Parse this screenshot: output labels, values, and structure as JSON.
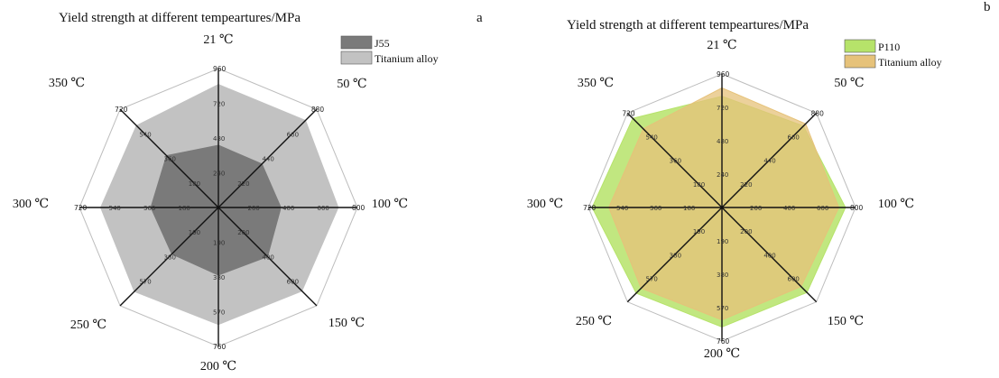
{
  "chart_data": [
    {
      "type": "radar",
      "panel": "a",
      "title": "Yield strength at different tempeartures/MPa",
      "axes": [
        {
          "label": "21 ℃",
          "max": 960,
          "ticks": [
            "240",
            "480",
            "720",
            "960"
          ]
        },
        {
          "label": "50 ℃",
          "max": 880,
          "ticks": [
            "220",
            "440",
            "660",
            "880"
          ]
        },
        {
          "label": "100 ℃",
          "max": 800,
          "ticks": [
            "200",
            "400",
            "600",
            "800"
          ]
        },
        {
          "label": "150 ℃",
          "max": 800,
          "ticks": [
            "200",
            "400",
            "600"
          ]
        },
        {
          "label": "200 ℃",
          "max": 760,
          "ticks": [
            "190",
            "380",
            "570",
            "760"
          ]
        },
        {
          "label": "250 ℃",
          "max": 760,
          "ticks": [
            "190",
            "380",
            "570"
          ]
        },
        {
          "label": "300 ℃",
          "max": 720,
          "ticks": [
            "180",
            "360",
            "540",
            "720"
          ]
        },
        {
          "label": "350 ℃",
          "max": 720,
          "ticks": [
            "180",
            "360",
            "540",
            "720"
          ]
        }
      ],
      "series": [
        {
          "name": "Titanium alloy",
          "color": "#c2c2c2",
          "values": [
            850,
            780,
            690,
            680,
            640,
            650,
            610,
            600
          ]
        },
        {
          "name": "J55",
          "color": "#7a7a7a",
          "values": [
            430,
            390,
            360,
            400,
            370,
            360,
            350,
            380
          ]
        }
      ],
      "legend": [
        "J55",
        "Titanium alloy"
      ],
      "legend_position": "top-right"
    },
    {
      "type": "radar",
      "panel": "b",
      "title": "Yield strength at different tempeartures/MPa",
      "axes": [
        {
          "label": "21 ℃",
          "max": 960,
          "ticks": [
            "240",
            "480",
            "720",
            "960"
          ]
        },
        {
          "label": "50 ℃",
          "max": 880,
          "ticks": [
            "220",
            "440",
            "660",
            "880"
          ]
        },
        {
          "label": "100 ℃",
          "max": 800,
          "ticks": [
            "200",
            "400",
            "600",
            "800"
          ]
        },
        {
          "label": "150 ℃",
          "max": 800,
          "ticks": [
            "200",
            "400",
            "600"
          ]
        },
        {
          "label": "200 ℃",
          "max": 760,
          "ticks": [
            "190",
            "380",
            "570",
            "760"
          ]
        },
        {
          "label": "250 ℃",
          "max": 760,
          "ticks": [
            "190",
            "380",
            "570"
          ]
        },
        {
          "label": "300 ℃",
          "max": 720,
          "ticks": [
            "180",
            "360",
            "540",
            "720"
          ]
        },
        {
          "label": "350 ℃",
          "max": 720,
          "ticks": [
            "180",
            "360",
            "540",
            "720"
          ]
        }
      ],
      "series": [
        {
          "name": "P110",
          "color": "#b6e36a",
          "values": [
            800,
            760,
            740,
            720,
            680,
            690,
            700,
            680
          ]
        },
        {
          "name": "Titanium alloy",
          "color": "#e6c27a",
          "values": [
            860,
            780,
            700,
            670,
            640,
            650,
            610,
            600
          ]
        }
      ],
      "legend": [
        "P110",
        "Titanium alloy"
      ],
      "legend_position": "top-right"
    }
  ]
}
